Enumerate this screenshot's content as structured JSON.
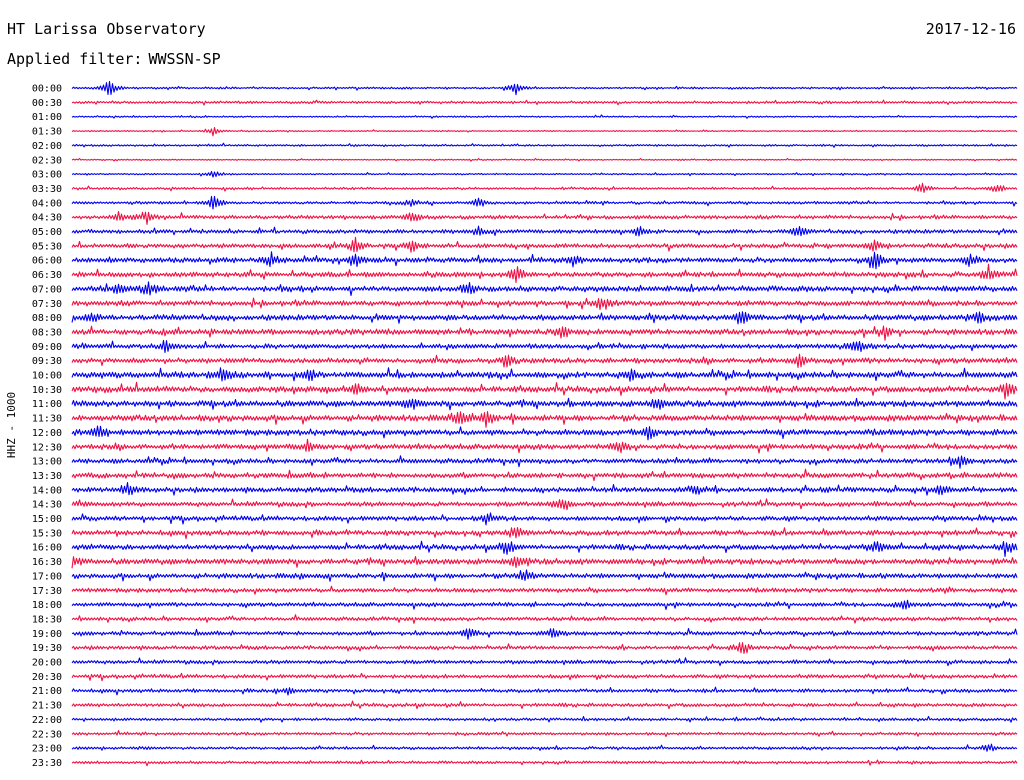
{
  "header": {
    "station": "HT Larissa Observatory",
    "date": "2017-12-16",
    "filter_label": "Applied filter:",
    "filter_name": "WWSSN-SP"
  },
  "chart_data": {
    "type": "helicorder",
    "ylabel": "HHZ - 1000",
    "row_labels": [
      "00:00",
      "00:30",
      "01:00",
      "01:30",
      "02:00",
      "02:30",
      "03:00",
      "03:30",
      "04:00",
      "04:30",
      "05:00",
      "05:30",
      "06:00",
      "06:30",
      "07:00",
      "07:30",
      "08:00",
      "08:30",
      "09:00",
      "09:30",
      "10:00",
      "10:30",
      "11:00",
      "11:30",
      "12:00",
      "12:30",
      "13:00",
      "13:30",
      "14:00",
      "14:30",
      "15:00",
      "15:30",
      "16:00",
      "16:30",
      "17:00",
      "17:30",
      "18:00",
      "18:30",
      "19:00",
      "19:30",
      "20:00",
      "20:30",
      "21:00",
      "21:30",
      "22:00",
      "22:30",
      "23:00",
      "23:30"
    ],
    "row_noise": [
      0.15,
      0.2,
      0.12,
      0.1,
      0.15,
      0.1,
      0.12,
      0.18,
      0.22,
      0.3,
      0.32,
      0.35,
      0.4,
      0.42,
      0.45,
      0.42,
      0.45,
      0.45,
      0.38,
      0.42,
      0.48,
      0.48,
      0.48,
      0.5,
      0.48,
      0.42,
      0.38,
      0.42,
      0.4,
      0.38,
      0.38,
      0.4,
      0.42,
      0.45,
      0.4,
      0.35,
      0.32,
      0.3,
      0.32,
      0.3,
      0.3,
      0.3,
      0.28,
      0.28,
      0.22,
      0.22,
      0.22,
      0.22
    ],
    "bursts": [
      {
        "row": 0,
        "x": 0.04,
        "amp": 1.6
      },
      {
        "row": 0,
        "x": 0.47,
        "amp": 1.1
      },
      {
        "row": 3,
        "x": 0.15,
        "amp": 0.8
      },
      {
        "row": 6,
        "x": 0.15,
        "amp": 0.6
      },
      {
        "row": 7,
        "x": 0.9,
        "amp": 0.9
      },
      {
        "row": 7,
        "x": 0.98,
        "amp": 0.8
      },
      {
        "row": 8,
        "x": 0.15,
        "amp": 1.3
      },
      {
        "row": 8,
        "x": 0.36,
        "amp": 0.8
      },
      {
        "row": 8,
        "x": 0.43,
        "amp": 0.8
      },
      {
        "row": 9,
        "x": 0.05,
        "amp": 1.0
      },
      {
        "row": 9,
        "x": 0.08,
        "amp": 1.0
      },
      {
        "row": 9,
        "x": 0.36,
        "amp": 1.1
      },
      {
        "row": 10,
        "x": 0.43,
        "amp": 0.8
      },
      {
        "row": 10,
        "x": 0.6,
        "amp": 0.9
      },
      {
        "row": 10,
        "x": 0.77,
        "amp": 1.0
      },
      {
        "row": 11,
        "x": 0.3,
        "amp": 1.3
      },
      {
        "row": 11,
        "x": 0.36,
        "amp": 1.2
      },
      {
        "row": 11,
        "x": 0.85,
        "amp": 1.2
      },
      {
        "row": 12,
        "x": 0.21,
        "amp": 1.1
      },
      {
        "row": 12,
        "x": 0.3,
        "amp": 1.2
      },
      {
        "row": 12,
        "x": 0.53,
        "amp": 1.0
      },
      {
        "row": 12,
        "x": 0.85,
        "amp": 1.4
      },
      {
        "row": 12,
        "x": 0.95,
        "amp": 1.1
      },
      {
        "row": 13,
        "x": 0.47,
        "amp": 1.2
      },
      {
        "row": 13,
        "x": 0.97,
        "amp": 1.3
      },
      {
        "row": 14,
        "x": 0.05,
        "amp": 1.2
      },
      {
        "row": 14,
        "x": 0.08,
        "amp": 1.1
      },
      {
        "row": 14,
        "x": 0.42,
        "amp": 1.0
      },
      {
        "row": 15,
        "x": 0.56,
        "amp": 1.2
      },
      {
        "row": 16,
        "x": 0.02,
        "amp": 0.9
      },
      {
        "row": 16,
        "x": 0.71,
        "amp": 1.2
      },
      {
        "row": 16,
        "x": 0.96,
        "amp": 1.1
      },
      {
        "row": 17,
        "x": 0.52,
        "amp": 1.0
      },
      {
        "row": 17,
        "x": 0.86,
        "amp": 0.9
      },
      {
        "row": 18,
        "x": 0.1,
        "amp": 1.0
      },
      {
        "row": 18,
        "x": 0.83,
        "amp": 1.2
      },
      {
        "row": 19,
        "x": 0.46,
        "amp": 1.1
      },
      {
        "row": 19,
        "x": 0.77,
        "amp": 1.0
      },
      {
        "row": 20,
        "x": 0.16,
        "amp": 1.2
      },
      {
        "row": 20,
        "x": 0.25,
        "amp": 1.2
      },
      {
        "row": 20,
        "x": 0.59,
        "amp": 1.0
      },
      {
        "row": 21,
        "x": 0.3,
        "amp": 1.0
      },
      {
        "row": 21,
        "x": 0.99,
        "amp": 1.2
      },
      {
        "row": 22,
        "x": 0.36,
        "amp": 1.0
      },
      {
        "row": 22,
        "x": 0.62,
        "amp": 1.0
      },
      {
        "row": 23,
        "x": 0.41,
        "amp": 1.4
      },
      {
        "row": 23,
        "x": 0.44,
        "amp": 1.2
      },
      {
        "row": 24,
        "x": 0.03,
        "amp": 1.0
      },
      {
        "row": 24,
        "x": 0.61,
        "amp": 1.0
      },
      {
        "row": 25,
        "x": 0.25,
        "amp": 1.0
      },
      {
        "row": 25,
        "x": 0.58,
        "amp": 1.0
      },
      {
        "row": 26,
        "x": 0.94,
        "amp": 1.0
      },
      {
        "row": 28,
        "x": 0.06,
        "amp": 1.1
      },
      {
        "row": 28,
        "x": 0.66,
        "amp": 1.0
      },
      {
        "row": 28,
        "x": 0.92,
        "amp": 1.1
      },
      {
        "row": 29,
        "x": 0.52,
        "amp": 1.3
      },
      {
        "row": 30,
        "x": 0.44,
        "amp": 1.0
      },
      {
        "row": 31,
        "x": 0.47,
        "amp": 1.0
      },
      {
        "row": 32,
        "x": 0.46,
        "amp": 1.2
      },
      {
        "row": 32,
        "x": 0.85,
        "amp": 1.0
      },
      {
        "row": 32,
        "x": 0.99,
        "amp": 1.2
      },
      {
        "row": 33,
        "x": 0.0,
        "amp": 1.3
      },
      {
        "row": 33,
        "x": 0.47,
        "amp": 1.0
      },
      {
        "row": 34,
        "x": 0.48,
        "amp": 1.0
      },
      {
        "row": 36,
        "x": 0.88,
        "amp": 0.9
      },
      {
        "row": 38,
        "x": 0.42,
        "amp": 1.0
      },
      {
        "row": 38,
        "x": 0.51,
        "amp": 1.2
      },
      {
        "row": 39,
        "x": 0.71,
        "amp": 1.2
      },
      {
        "row": 42,
        "x": 0.23,
        "amp": 0.8
      },
      {
        "row": 46,
        "x": 0.97,
        "amp": 0.8
      }
    ],
    "colors": {
      "even": "#0000ee",
      "odd": "#ee1144"
    },
    "grid": false
  }
}
